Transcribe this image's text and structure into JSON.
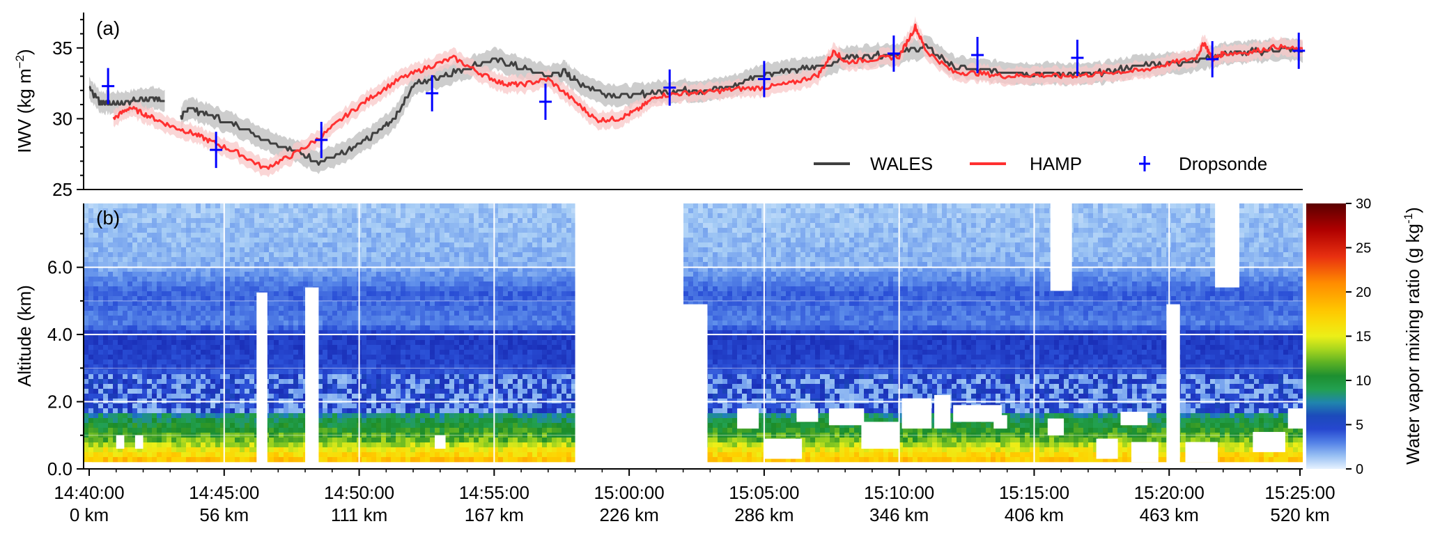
{
  "chart_data": [
    {
      "panel": "(a)",
      "type": "line",
      "ylabel_main": "IWV (kg m",
      "ylabel_sup": "−2",
      "ylabel_end": ")",
      "ylim": [
        25,
        37.5
      ],
      "yticks": [
        25,
        30,
        35
      ],
      "xlim_minutes": [
        0,
        45
      ],
      "x_unit": "minutes after 14:40:00",
      "grid": false,
      "legend_position": "lower-right",
      "series": [
        {
          "name": "WALES",
          "color": "#404040",
          "band_color": "#c8c8c8",
          "x": [
            0,
            0.4,
            0.8,
            1.5,
            2.2,
            2.8,
            3.2,
            3.4,
            3.7,
            4.5,
            5.5,
            6.5,
            7.5,
            8.5,
            9.5,
            10.5,
            11.3,
            12,
            13,
            14,
            15,
            16,
            17,
            17.6,
            18,
            19,
            20,
            21,
            22,
            23,
            24,
            25,
            26,
            27,
            28,
            29,
            30,
            31,
            32,
            33,
            34,
            35,
            36,
            37,
            38,
            39,
            40,
            41,
            42,
            43,
            44,
            45
          ],
          "y": [
            32.2,
            31.2,
            31.1,
            31.2,
            31.5,
            31.3,
            null,
            30.1,
            30.8,
            30.2,
            29.5,
            28.6,
            27.8,
            27.0,
            27.6,
            28.8,
            30.0,
            32.4,
            33.0,
            33.6,
            34.2,
            33.6,
            33.0,
            33.3,
            32.7,
            31.8,
            31.6,
            31.9,
            32.0,
            32.0,
            32.4,
            33.2,
            33.4,
            33.6,
            34.3,
            34.5,
            34.6,
            35.1,
            33.7,
            33.4,
            33.3,
            33.2,
            33.2,
            33.1,
            33.4,
            33.8,
            33.9,
            34.1,
            34.6,
            34.7,
            34.9,
            34.8
          ]
        },
        {
          "name": "HAMP",
          "color": "#ff3030",
          "band_color": "#f8c8c8",
          "x": [
            0.9,
            1.5,
            2.2,
            3,
            3.8,
            4.5,
            5.5,
            6.5,
            7.5,
            8.5,
            9.5,
            10.5,
            11.5,
            12.5,
            13.5,
            14.5,
            15.3,
            16,
            17,
            18,
            18.8,
            19.6,
            20.3,
            21,
            22,
            23,
            24,
            25,
            26,
            27,
            27.6,
            28,
            29,
            30,
            30.6,
            31,
            32,
            33,
            34,
            35,
            36,
            37,
            38,
            39,
            40,
            41,
            41.3,
            41.6,
            42,
            43,
            44,
            45
          ],
          "y": [
            30.0,
            30.8,
            30.2,
            29.5,
            29.0,
            28.4,
            27.6,
            26.5,
            27.4,
            28.6,
            30.2,
            31.6,
            32.8,
            33.6,
            34.3,
            33.2,
            32.5,
            32.4,
            32.8,
            31.2,
            29.9,
            30.0,
            30.6,
            31.6,
            31.8,
            31.9,
            32.1,
            32.2,
            32.5,
            33.1,
            34.8,
            34.0,
            34.2,
            34.4,
            36.5,
            34.8,
            33.3,
            33.2,
            33.0,
            33.1,
            33.0,
            33.1,
            33.3,
            33.4,
            33.9,
            34.3,
            35.4,
            34.2,
            34.6,
            34.7,
            35.1,
            34.8
          ]
        },
        {
          "name": "Dropsonde",
          "color": "#0000ff",
          "x": [
            0.7,
            4.7,
            8.6,
            12.7,
            16.9,
            21.5,
            25.0,
            29.8,
            32.9,
            36.6,
            41.6,
            44.8
          ],
          "y": [
            32.3,
            27.8,
            28.5,
            31.8,
            31.2,
            32.2,
            32.8,
            34.6,
            34.5,
            34.3,
            34.2,
            34.8
          ]
        }
      ]
    },
    {
      "panel": "(b)",
      "type": "heatmap",
      "ylabel": "Altitude (km)",
      "ylim": [
        0,
        7.9
      ],
      "yticks": [
        "0.0",
        "2.0",
        "4.0",
        "6.0"
      ],
      "grid": true,
      "colorbar_label_main": "Water vapor mixing ratio (g kg",
      "colorbar_label_sup": "-1",
      "colorbar_label_end": ")",
      "colorbar_range": [
        0,
        30
      ],
      "colorbar_ticks": [
        0,
        5,
        10,
        15,
        20,
        25,
        30
      ],
      "colormap": [
        "#e6f2ff",
        "#a6ccf5",
        "#5c8cea",
        "#2a4fd6",
        "#1a2fb8",
        "#1f7fc0",
        "#22a050",
        "#1c8c2a",
        "#8ccc20",
        "#ecef18",
        "#ffd000",
        "#ff8c00",
        "#e83010",
        "#b00000",
        "#5a0000"
      ],
      "data_gaps_minutes": [
        [
          18,
          22
        ]
      ],
      "profile": [
        {
          "alt_km": 0.0,
          "value": 20
        },
        {
          "alt_km": 0.4,
          "value": 17
        },
        {
          "alt_km": 0.9,
          "value": 12
        },
        {
          "alt_km": 1.5,
          "value": 9
        },
        {
          "alt_km": 1.9,
          "value": 5
        },
        {
          "alt_km": 2.4,
          "value": 2.5
        },
        {
          "alt_km": 3.0,
          "value": 4.5
        },
        {
          "alt_km": 4.0,
          "value": 5
        },
        {
          "alt_km": 4.3,
          "value": 3
        },
        {
          "alt_km": 5.2,
          "value": 3.8
        },
        {
          "alt_km": 6.1,
          "value": 1.8
        },
        {
          "alt_km": 7.9,
          "value": 1.3
        }
      ]
    }
  ],
  "x_axis": {
    "ticks": [
      {
        "time": "14:40:00",
        "distance": "0 km"
      },
      {
        "time": "14:45:00",
        "distance": "56 km"
      },
      {
        "time": "14:50:00",
        "distance": "111 km"
      },
      {
        "time": "14:55:00",
        "distance": "167 km"
      },
      {
        "time": "15:00:00",
        "distance": "226 km"
      },
      {
        "time": "15:05:00",
        "distance": "286 km"
      },
      {
        "time": "15:10:00",
        "distance": "346 km"
      },
      {
        "time": "15:15:00",
        "distance": "406 km"
      },
      {
        "time": "15:20:00",
        "distance": "463 km"
      },
      {
        "time": "15:25:00",
        "distance": "520 km"
      }
    ]
  }
}
